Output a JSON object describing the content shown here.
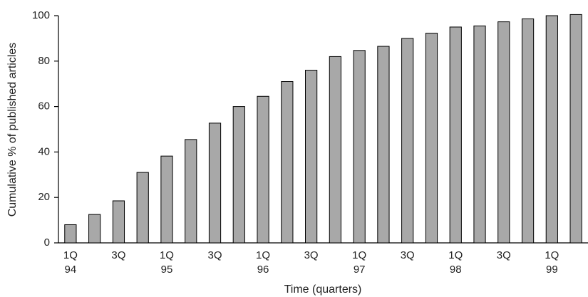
{
  "chart_data": {
    "type": "bar",
    "x_label": "Time (quarters)",
    "y_label": "Cumulative % of published articles",
    "categories": [
      [
        "1Q",
        "94"
      ],
      null,
      [
        "3Q"
      ],
      null,
      [
        "1Q",
        "95"
      ],
      null,
      [
        "3Q"
      ],
      null,
      [
        "1Q",
        "96"
      ],
      null,
      [
        "3Q"
      ],
      null,
      [
        "1Q",
        "97"
      ],
      null,
      [
        "3Q"
      ],
      null,
      [
        "1Q",
        "98"
      ],
      null,
      [
        "3Q"
      ],
      null,
      [
        "1Q",
        "99"
      ],
      null
    ],
    "values": [
      8,
      12.5,
      18.5,
      31,
      38.2,
      45.5,
      52.7,
      60,
      64.5,
      71,
      76,
      82,
      84.7,
      86.5,
      90,
      92.3,
      95,
      95.5,
      97.3,
      98.6,
      100,
      100.5
    ],
    "color": "#a8a8a8",
    "ylim": [
      0,
      100
    ],
    "yticks": [
      0,
      20,
      40,
      60,
      80,
      100
    ]
  }
}
